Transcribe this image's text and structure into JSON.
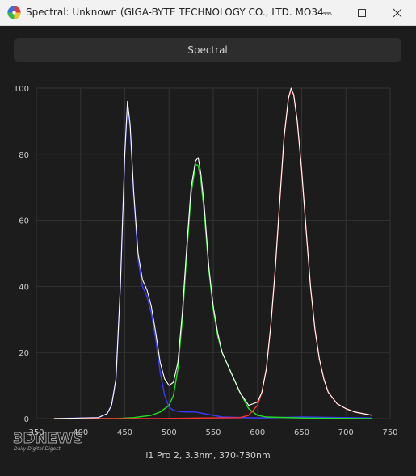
{
  "window": {
    "title": "Spectral: Unknown (GIGA-BYTE TECHNOLOGY CO., LTD. MO34...",
    "icon": "app-spectrum-icon"
  },
  "toolbar": {
    "spectral_label": "Spectral"
  },
  "watermark": {
    "brand": "3DNEWS",
    "tagline": "Daily Digital Digest"
  },
  "chart_data": {
    "type": "line",
    "title": "",
    "xlabel": "i1 Pro 2, 3.3nm, 370-730nm",
    "ylabel": "",
    "xlim": [
      350,
      750
    ],
    "ylim": [
      0,
      100
    ],
    "xticks": [
      350,
      400,
      450,
      500,
      550,
      600,
      650,
      700,
      750
    ],
    "yticks": [
      0,
      20,
      40,
      60,
      80,
      100
    ],
    "grid": true,
    "series": [
      {
        "color": "#3a3aff",
        "x": [
          370,
          420,
          430,
          435,
          440,
          445,
          450,
          453,
          456,
          460,
          465,
          470,
          475,
          480,
          485,
          490,
          495,
          500,
          505,
          510,
          520,
          530,
          540,
          550,
          560,
          600,
          650,
          700,
          730
        ],
        "y": [
          0,
          0.3,
          1.5,
          4,
          12,
          40,
          80,
          95,
          88,
          68,
          48,
          40,
          37,
          32,
          24,
          14,
          7,
          3.5,
          2.5,
          2.2,
          2,
          2,
          1.5,
          1,
          0.5,
          0.2,
          0.5,
          0.3,
          0.2
        ]
      },
      {
        "color": "#22dd22",
        "x": [
          370,
          440,
          460,
          480,
          490,
          500,
          505,
          510,
          515,
          520,
          525,
          530,
          533,
          536,
          540,
          545,
          550,
          555,
          560,
          570,
          580,
          590,
          600,
          610,
          650,
          730
        ],
        "y": [
          0,
          0,
          0.3,
          1,
          2,
          4,
          7,
          15,
          30,
          50,
          68,
          77,
          76.5,
          72,
          62,
          45,
          33,
          25,
          20,
          14,
          8,
          3,
          1,
          0.5,
          0.2,
          0
        ]
      },
      {
        "color": "#ff3030",
        "x": [
          370,
          490,
          540,
          580,
          590,
          600,
          605,
          610,
          615,
          620,
          625,
          630,
          635,
          638,
          641,
          645,
          650,
          655,
          660,
          665,
          670,
          675,
          680,
          690,
          700,
          710,
          720,
          730
        ],
        "y": [
          0,
          0,
          0.2,
          0.3,
          1,
          4,
          8,
          15,
          28,
          45,
          65,
          85,
          97,
          99.5,
          98,
          90,
          75,
          57,
          40,
          27,
          18,
          12,
          8,
          4.5,
          3,
          2,
          1.5,
          1
        ]
      },
      {
        "color": "#ffffff",
        "x": [
          370,
          420,
          430,
          435,
          440,
          445,
          450,
          453,
          456,
          460,
          465,
          470,
          475,
          480,
          485,
          490,
          495,
          500,
          505,
          510,
          515,
          520,
          525,
          530,
          533,
          536,
          540,
          545,
          550,
          555,
          560,
          570,
          580,
          590,
          600,
          605,
          610,
          615,
          620,
          625,
          630,
          635,
          638,
          641,
          645,
          650,
          655,
          660,
          665,
          670,
          675,
          680,
          690,
          700,
          710,
          720,
          730
        ],
        "y": [
          0,
          0.3,
          1.5,
          4,
          12,
          40,
          80,
          96,
          89,
          69,
          50,
          42,
          39,
          34,
          26,
          17,
          12,
          10,
          11,
          17,
          32,
          52,
          70,
          78,
          79,
          74,
          64,
          46,
          34,
          26,
          20,
          14,
          8,
          4,
          5,
          8,
          15,
          28,
          45,
          65,
          85,
          97,
          100,
          98,
          90,
          75,
          57,
          40,
          27,
          18,
          12,
          8,
          4.5,
          3,
          2,
          1.5,
          1
        ]
      }
    ]
  }
}
